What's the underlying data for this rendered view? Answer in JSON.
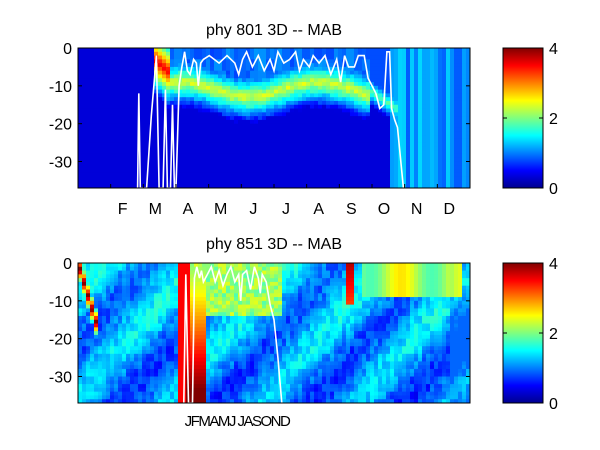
{
  "chart_data": [
    {
      "type": "heatmap",
      "title": "phy  801 3D   -- MAB",
      "ylim": [
        -37,
        0
      ],
      "yticks": [
        0,
        -10,
        -20,
        -30
      ],
      "ytick_labels": [
        "0",
        "-10",
        "-20",
        "-30"
      ],
      "xticks": [
        "F",
        "M",
        "A",
        "M",
        "J",
        "J",
        "A",
        "S",
        "O",
        "N",
        "D"
      ],
      "colorbar": {
        "range": [
          0,
          4
        ],
        "ticks": [
          "0",
          "2",
          "4"
        ]
      },
      "line_series": {
        "color": "#ffffff",
        "points": [
          [
            0.152,
            -37
          ],
          [
            0.155,
            -12
          ],
          [
            0.159,
            -37
          ],
          [
            0.175,
            -37
          ],
          [
            0.187,
            -18
          ],
          [
            0.2,
            -2
          ],
          [
            0.207,
            -37
          ],
          [
            0.217,
            -37
          ],
          [
            0.223,
            -11
          ],
          [
            0.228,
            -37
          ],
          [
            0.236,
            -37
          ],
          [
            0.241,
            -15
          ],
          [
            0.246,
            -37
          ],
          [
            0.25,
            -37
          ],
          [
            0.258,
            -10
          ],
          [
            0.265,
            -5
          ],
          [
            0.272,
            -1
          ],
          [
            0.279,
            -6
          ],
          [
            0.286,
            -7
          ],
          [
            0.295,
            -3
          ],
          [
            0.302,
            -4
          ],
          [
            0.307,
            -10
          ],
          [
            0.313,
            -4
          ],
          [
            0.32,
            -3
          ],
          [
            0.335,
            -2
          ],
          [
            0.36,
            -4
          ],
          [
            0.38,
            -2
          ],
          [
            0.4,
            -4
          ],
          [
            0.41,
            -7
          ],
          [
            0.42,
            -3
          ],
          [
            0.43,
            -1
          ],
          [
            0.445,
            -5
          ],
          [
            0.46,
            -2
          ],
          [
            0.475,
            -6
          ],
          [
            0.49,
            -3
          ],
          [
            0.5,
            -6
          ],
          [
            0.51,
            -1
          ],
          [
            0.525,
            -4
          ],
          [
            0.54,
            -3
          ],
          [
            0.555,
            -1
          ],
          [
            0.565,
            -6
          ],
          [
            0.575,
            -3
          ],
          [
            0.59,
            -5
          ],
          [
            0.6,
            -2
          ],
          [
            0.615,
            -4
          ],
          [
            0.63,
            -2
          ],
          [
            0.645,
            -7
          ],
          [
            0.66,
            -3
          ],
          [
            0.67,
            -9
          ],
          [
            0.68,
            -2
          ],
          [
            0.69,
            -5
          ],
          [
            0.705,
            -5
          ],
          [
            0.715,
            -2
          ],
          [
            0.73,
            -2
          ],
          [
            0.74,
            -8
          ],
          [
            0.75,
            -10
          ],
          [
            0.76,
            -12
          ],
          [
            0.77,
            -16
          ],
          [
            0.78,
            -15
          ],
          [
            0.788,
            -1
          ],
          [
            0.795,
            -1
          ],
          [
            0.8,
            -16
          ],
          [
            0.808,
            -19
          ],
          [
            0.815,
            -21
          ],
          [
            0.83,
            -37
          ]
        ]
      }
    },
    {
      "type": "heatmap",
      "title": "phy  851 3D   -- MAB",
      "ylim": [
        -37,
        0
      ],
      "yticks": [
        0,
        -10,
        -20,
        -30
      ],
      "ytick_labels": [
        "0",
        "-10",
        "-20",
        "-30"
      ],
      "xtick_text": "JFMAMJ JASOND",
      "colorbar": {
        "range": [
          0,
          4
        ],
        "ticks": [
          "0",
          "2",
          "4"
        ]
      },
      "line_series": {
        "color": "#ffffff",
        "points": [
          [
            0.27,
            -37
          ],
          [
            0.275,
            -3
          ],
          [
            0.282,
            -37
          ],
          [
            0.292,
            -37
          ],
          [
            0.297,
            -4
          ],
          [
            0.303,
            -1
          ],
          [
            0.31,
            -4
          ],
          [
            0.315,
            -2
          ],
          [
            0.32,
            -5
          ],
          [
            0.33,
            -3
          ],
          [
            0.34,
            -1
          ],
          [
            0.35,
            -5
          ],
          [
            0.36,
            -2
          ],
          [
            0.37,
            -6
          ],
          [
            0.38,
            -3
          ],
          [
            0.39,
            -1
          ],
          [
            0.4,
            -5
          ],
          [
            0.41,
            -3
          ],
          [
            0.415,
            -10
          ],
          [
            0.42,
            -3
          ],
          [
            0.43,
            -2
          ],
          [
            0.44,
            -7
          ],
          [
            0.45,
            -1
          ],
          [
            0.46,
            -4
          ],
          [
            0.465,
            -8
          ],
          [
            0.47,
            -3
          ],
          [
            0.48,
            -5
          ],
          [
            0.49,
            -11
          ],
          [
            0.5,
            -15
          ],
          [
            0.51,
            -25
          ],
          [
            0.52,
            -37
          ]
        ]
      }
    }
  ]
}
